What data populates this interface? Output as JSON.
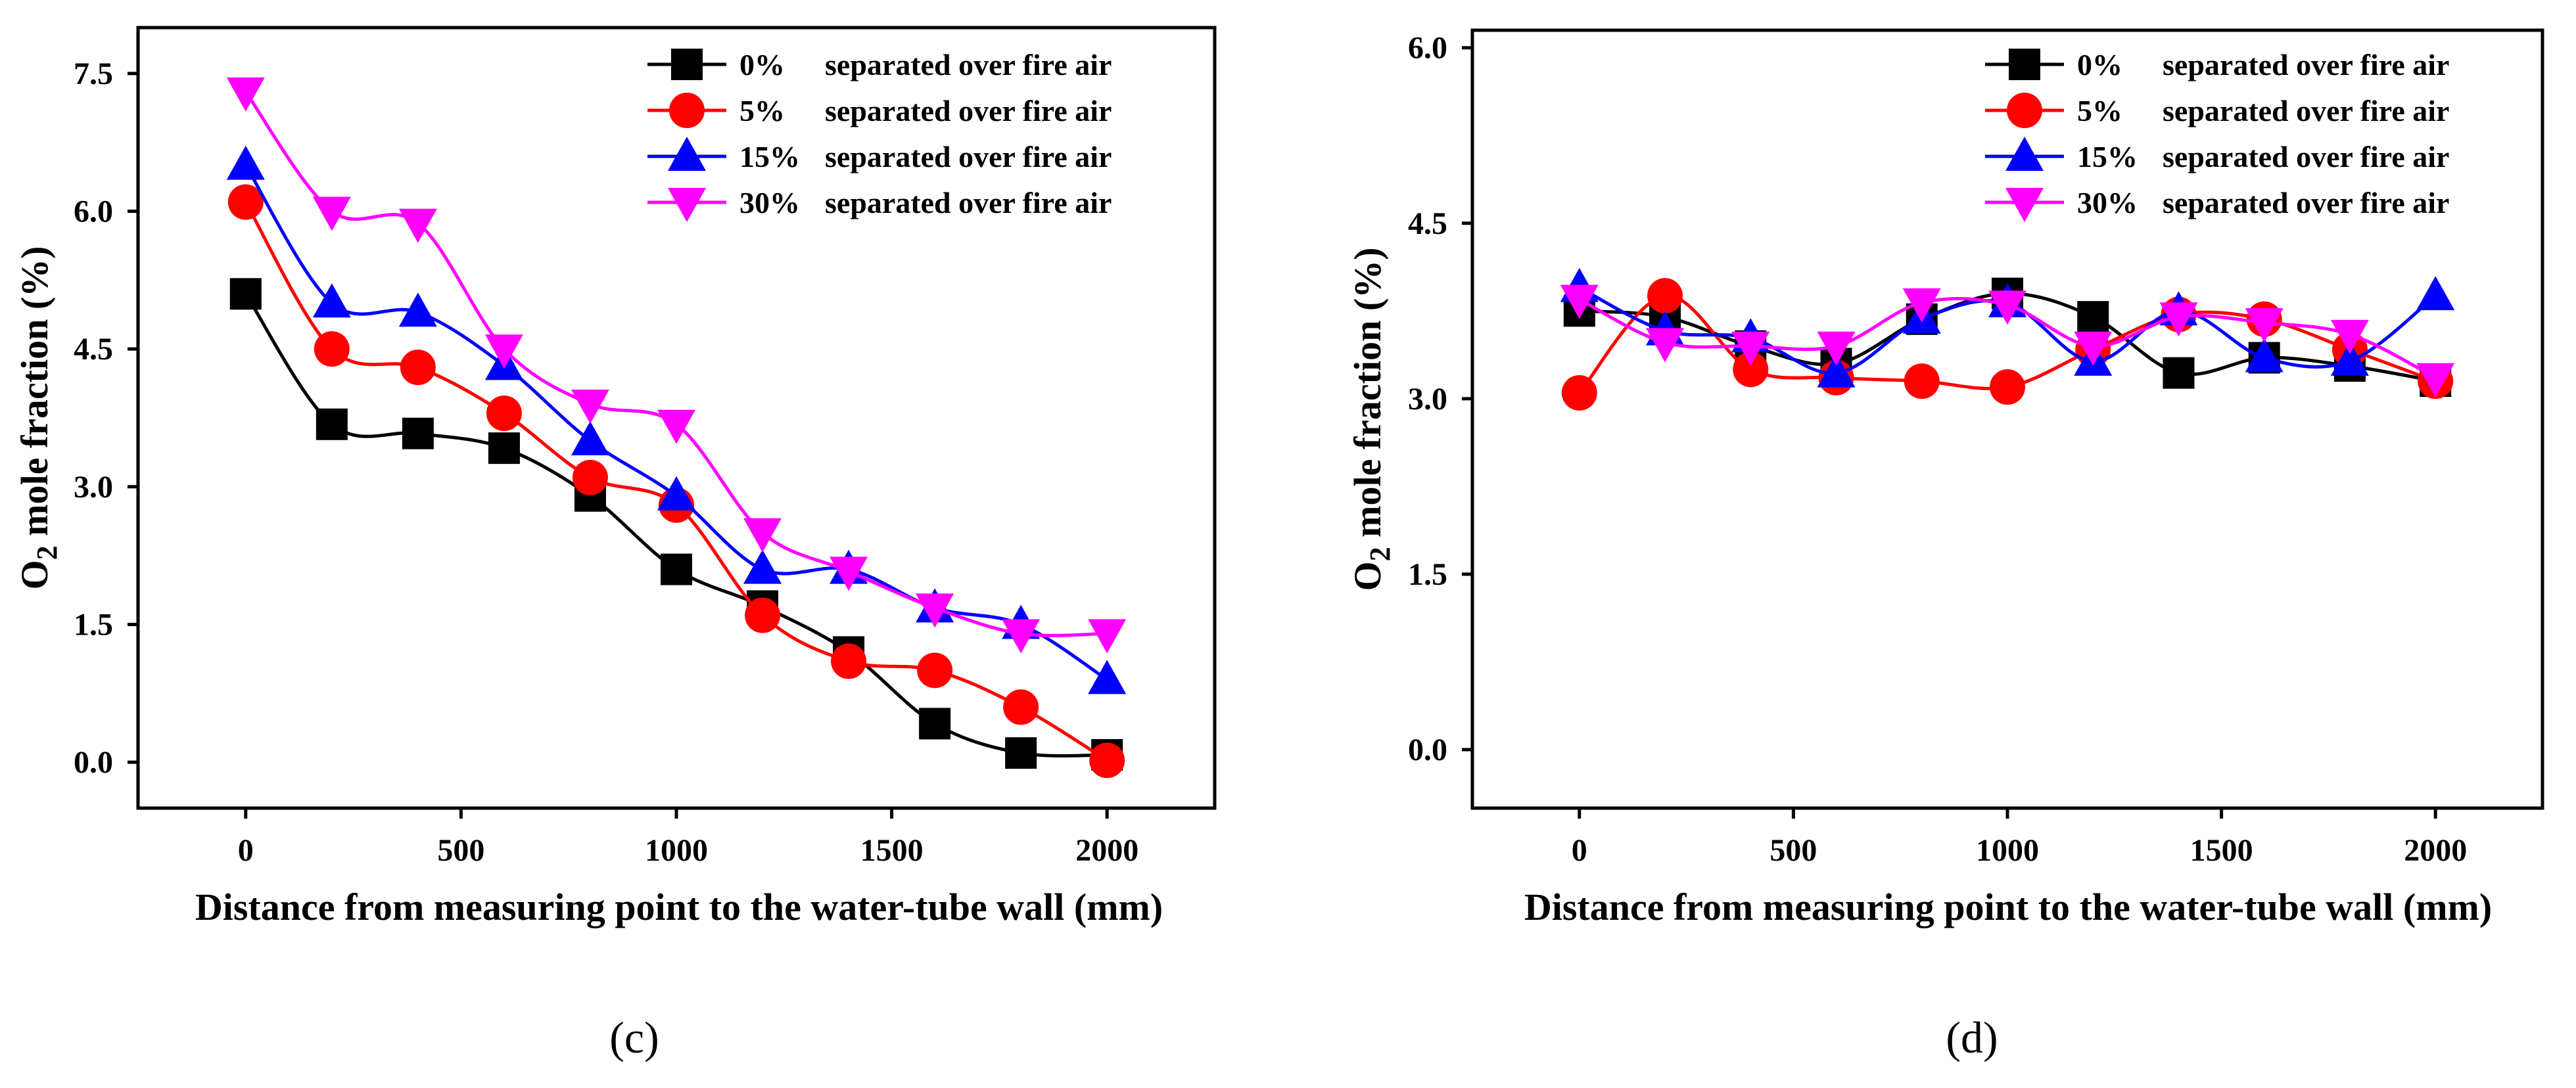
{
  "chart_data": [
    {
      "id": "c",
      "type": "line",
      "panel_label": "(c)",
      "xlabel": "Distance from measuring point to the water-tube wall (mm)",
      "ylabel_main": "O",
      "ylabel_sub": "2",
      "ylabel_rest": " mole fraction (%)",
      "xlim": [
        -250,
        2250
      ],
      "ylim": [
        -0.5,
        8.0
      ],
      "xticks": [
        0,
        500,
        1000,
        1500,
        2000
      ],
      "yticks": [
        0.0,
        1.5,
        3.0,
        4.5,
        6.0,
        7.5
      ],
      "ytick_labels": [
        "0.0",
        "1.5",
        "3.0",
        "4.5",
        "6.0",
        "7.5"
      ],
      "x": [
        0,
        200,
        400,
        600,
        800,
        1000,
        1200,
        1400,
        1600,
        1800,
        2000
      ],
      "legend_position": "top-right",
      "series": [
        {
          "name": "0%",
          "label_text": "separated over fire air",
          "color": "#000000",
          "marker": "square",
          "values": [
            5.1,
            3.68,
            3.58,
            3.42,
            2.9,
            2.1,
            1.7,
            1.2,
            0.42,
            0.1,
            0.08
          ]
        },
        {
          "name": "5%",
          "label_text": "separated over fire air",
          "color": "#ff0000",
          "marker": "circle",
          "values": [
            6.1,
            4.5,
            4.3,
            3.8,
            3.1,
            2.8,
            1.6,
            1.1,
            1.0,
            0.6,
            0.02
          ]
        },
        {
          "name": "15%",
          "label_text": "separated over fire air",
          "color": "#0000ff",
          "marker": "triangle-up",
          "values": [
            6.5,
            5.0,
            4.9,
            4.32,
            3.5,
            2.9,
            2.1,
            2.1,
            1.68,
            1.5,
            0.9
          ]
        },
        {
          "name": "30%",
          "label_text": "separated over fire air",
          "color": "#ff00ff",
          "marker": "triangle-down",
          "values": [
            7.3,
            6.0,
            5.87,
            4.5,
            3.9,
            3.68,
            2.5,
            2.08,
            1.68,
            1.4,
            1.4
          ]
        }
      ]
    },
    {
      "id": "d",
      "type": "line",
      "panel_label": "(d)",
      "xlabel": "Distance from measuring point to the water-tube wall (mm)",
      "ylabel_main": "O",
      "ylabel_sub": "2",
      "ylabel_rest": " mole fraction (%)",
      "xlim": [
        -250,
        2250
      ],
      "ylim": [
        -0.5,
        6.15
      ],
      "xticks": [
        0,
        500,
        1000,
        1500,
        2000
      ],
      "yticks": [
        0.0,
        1.5,
        3.0,
        4.5,
        6.0
      ],
      "ytick_labels": [
        "0.0",
        "1.5",
        "3.0",
        "4.5",
        "6.0"
      ],
      "x": [
        0,
        200,
        400,
        600,
        800,
        1000,
        1200,
        1400,
        1600,
        1800,
        2000
      ],
      "legend_position": "top-right",
      "series": [
        {
          "name": "0%",
          "label_text": "separated over fire air",
          "color": "#000000",
          "marker": "square",
          "values": [
            3.75,
            3.7,
            3.45,
            3.3,
            3.68,
            3.9,
            3.7,
            3.22,
            3.35,
            3.28,
            3.15
          ]
        },
        {
          "name": "5%",
          "label_text": "separated over fire air",
          "color": "#ff0000",
          "marker": "circle",
          "values": [
            3.05,
            3.88,
            3.25,
            3.18,
            3.15,
            3.1,
            3.42,
            3.72,
            3.68,
            3.42,
            3.15
          ]
        },
        {
          "name": "15%",
          "label_text": "separated over fire air",
          "color": "#0000ff",
          "marker": "triangle-up",
          "values": [
            3.95,
            3.58,
            3.52,
            3.22,
            3.68,
            3.82,
            3.32,
            3.75,
            3.35,
            3.32,
            3.88
          ]
        },
        {
          "name": "30%",
          "label_text": "separated over fire air",
          "color": "#ff00ff",
          "marker": "triangle-down",
          "values": [
            3.85,
            3.48,
            3.45,
            3.45,
            3.82,
            3.8,
            3.45,
            3.7,
            3.65,
            3.55,
            3.18
          ]
        }
      ]
    }
  ]
}
